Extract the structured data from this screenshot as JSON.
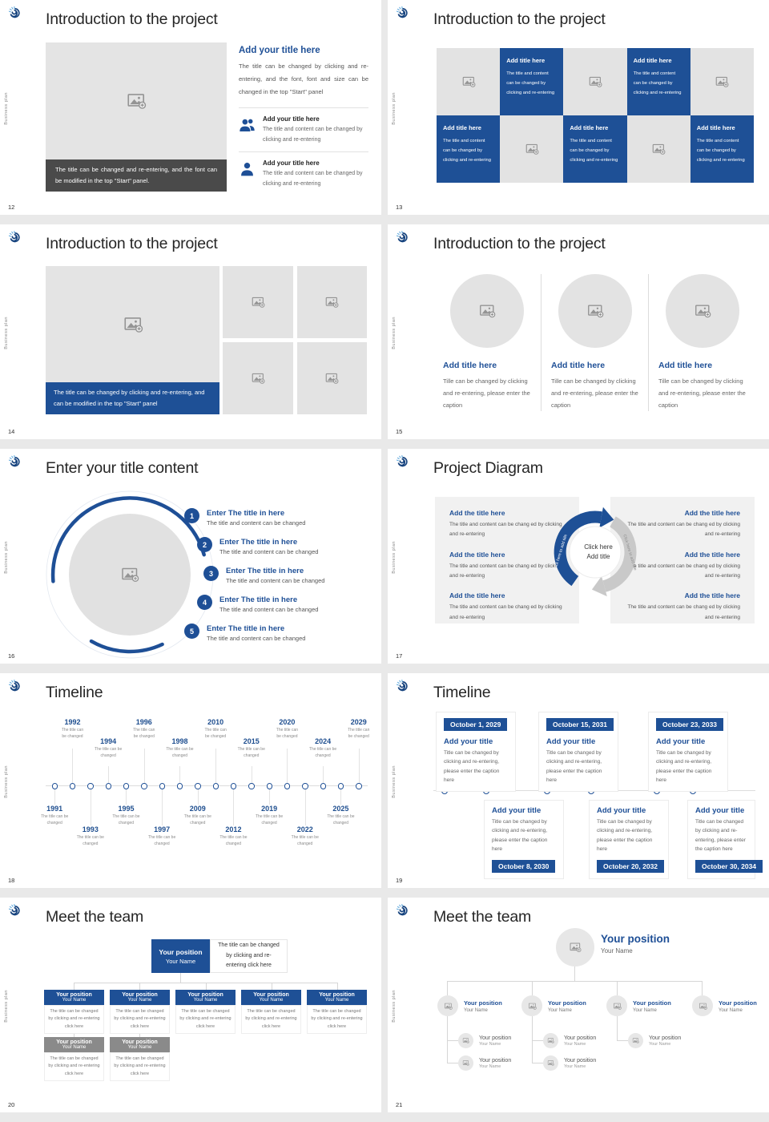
{
  "page": {
    "background": "#e9e9e9",
    "accent": "#1e4f96",
    "sidebar_text": "Business plan"
  },
  "slides": {
    "s12": {
      "number": "12",
      "title": "Introduction to the project",
      "image_caption": "The title can be changed and re-entering, and the font can be modified in the top \"Start\" panel.",
      "heading": "Add your title here",
      "body": "The title can be changed by clicking and re-entering, and the font, font and size can be changed in the top \"Start\" panel",
      "items": [
        {
          "icon": "people",
          "title": "Add your title here",
          "text": "The title and content can be changed by clicking and re-entering"
        },
        {
          "icon": "person",
          "title": "Add your title here",
          "text": "The title and content can be changed by clicking and re-entering"
        }
      ]
    },
    "s13": {
      "number": "13",
      "title": "Introduction to the project",
      "cells": [
        {
          "type": "image"
        },
        {
          "type": "text",
          "title": "Add title here",
          "text": "The title and content can be changed by clicking and re-entering"
        },
        {
          "type": "image"
        },
        {
          "type": "text",
          "title": "Add title here",
          "text": "The title and content can be changed by clicking and re-entering"
        },
        {
          "type": "image"
        },
        {
          "type": "text",
          "title": "Add title here",
          "text": "The title and content can be changed by clicking and re-entering"
        },
        {
          "type": "image"
        },
        {
          "type": "text",
          "title": "Add title here",
          "text": "The title and content can be changed by clicking and re-entering"
        },
        {
          "type": "image"
        },
        {
          "type": "text",
          "title": "Add title here",
          "text": "The title and content can be changed by clicking and re-entering"
        }
      ]
    },
    "s14": {
      "number": "14",
      "title": "Introduction to the project",
      "caption": "The title can be changed by clicking and re-entering, and can be modified in the top \"Start\" panel",
      "thumbs": [
        "",
        "",
        "",
        ""
      ]
    },
    "s15": {
      "number": "15",
      "title": "Introduction to the project",
      "cols": [
        {
          "title": "Add title here",
          "text": "Tille can be changed by clicking and re-entering, please enter the caption"
        },
        {
          "title": "Add title here",
          "text": "Tille can be changed by clicking and re-entering, please enter the caption"
        },
        {
          "title": "Add title here",
          "text": "Tille can be changed by clicking and re-entering, please enter the caption"
        }
      ]
    },
    "s16": {
      "number": "16",
      "title": "Enter your title content",
      "items": [
        {
          "num": "1",
          "pos": "a",
          "title": "Enter The title in here",
          "text": "The title and content can be changed"
        },
        {
          "num": "2",
          "pos": "b",
          "title": "Enter The title in here",
          "text": "The title and content can be changed"
        },
        {
          "num": "3",
          "pos": "c",
          "title": "Enter The title in here",
          "text": "The title and content can be changed"
        },
        {
          "num": "4",
          "pos": "b",
          "title": "Enter The title in here",
          "text": "The title and content can be changed"
        },
        {
          "num": "5",
          "pos": "a",
          "title": "Enter The title in here",
          "text": "The title and content can be changed"
        }
      ]
    },
    "s17": {
      "number": "17",
      "title": "Project Diagram",
      "left_items": [
        {
          "title": "Add the title here",
          "text": "The title and content can be chang ed by clicking and re-entering"
        },
        {
          "title": "Add the title here",
          "text": "The title and content can be chang ed by clicking and re-entering"
        },
        {
          "title": "Add the title here",
          "text": "The title and content can be chang ed by clicking and re-entering"
        }
      ],
      "right_items": [
        {
          "title": "Add the title here",
          "text": "The title and content can be chang ed by clicking and re-entering"
        },
        {
          "title": "Add the title here",
          "text": "The title and content can be chang ed by clicking and re-entering"
        },
        {
          "title": "Add the title here",
          "text": "The title and content can be chang ed by clicking and re-entering"
        }
      ],
      "center": {
        "line1": "Click here",
        "line2": "Add title",
        "arrow_label": "Click here to add title"
      }
    },
    "s18": {
      "number": "18",
      "title": "Timeline",
      "points": [
        {
          "year": "1991",
          "pos": "below-near",
          "text": "The title can be changed"
        },
        {
          "year": "1992",
          "pos": "above-high",
          "text": "The title can be changed"
        },
        {
          "year": "1993",
          "pos": "below-far",
          "text": "The title can be changed"
        },
        {
          "year": "1994",
          "pos": "above-low",
          "text": "The title can be changed"
        },
        {
          "year": "1995",
          "pos": "below-near",
          "text": "The title can be changed"
        },
        {
          "year": "1996",
          "pos": "above-high",
          "text": "The title can be changed"
        },
        {
          "year": "1997",
          "pos": "below-far",
          "text": "The title can be changed"
        },
        {
          "year": "1998",
          "pos": "above-low",
          "text": "The title can be changed"
        },
        {
          "year": "2009",
          "pos": "below-near",
          "text": "The title can be changed"
        },
        {
          "year": "2010",
          "pos": "above-high",
          "text": "The title can be changed"
        },
        {
          "year": "2012",
          "pos": "below-far",
          "text": "The title can be changed"
        },
        {
          "year": "2015",
          "pos": "above-low",
          "text": "The title can be changed"
        },
        {
          "year": "2019",
          "pos": "below-near",
          "text": "The title can be changed"
        },
        {
          "year": "2020",
          "pos": "above-high",
          "text": "The title can be changed"
        },
        {
          "year": "2022",
          "pos": "below-far",
          "text": "The title can be changed"
        },
        {
          "year": "2024",
          "pos": "above-low",
          "text": "The title can be changed"
        },
        {
          "year": "2025",
          "pos": "below-near",
          "text": "The title can be changed"
        },
        {
          "year": "2029",
          "pos": "above-high",
          "text": "The title can be changed"
        }
      ]
    },
    "s19": {
      "number": "19",
      "title": "Timeline",
      "cards": [
        {
          "date": "October 1, 2029",
          "side": "top",
          "title": "Add your title",
          "text": "Title can be changed by clicking and re-entering, please enter the caption here"
        },
        {
          "date": "October 8, 2030",
          "side": "bottom",
          "title": "Add your title",
          "text": "Title can be changed by clicking and re-entering, please enter the caption here"
        },
        {
          "date": "October 15, 2031",
          "side": "top",
          "title": "Add your title",
          "text": "Title can be changed by clicking and re-entering, please enter the caption here"
        },
        {
          "date": "October 20, 2032",
          "side": "bottom",
          "title": "Add your title",
          "text": "Title can be changed by clicking and re-entering, please enter the caption here"
        },
        {
          "date": "October 23, 2033",
          "side": "top",
          "title": "Add your title",
          "text": "Title can be changed by clicking and re-entering, please enter the caption here"
        },
        {
          "date": "October 30, 2034",
          "side": "bottom",
          "title": "Add your title",
          "text": "Title can be changed by clicking and re-entering, please enter the caption here"
        }
      ]
    },
    "s20": {
      "number": "20",
      "title": "Meet the team",
      "root": {
        "position": "Your position",
        "name": "Your Name"
      },
      "root_note": "The title can be changed by clicking and re-entering click here",
      "row2": [
        {
          "position": "Your position",
          "name": "Your Name",
          "text": "The title can be changed by clicking and re-entering click here"
        },
        {
          "position": "Your position",
          "name": "Your Name",
          "text": "The title can be changed by clicking and re-entering click here"
        },
        {
          "position": "Your position",
          "name": "Your Name",
          "text": "The title can be changed by clicking and re-entering click here"
        },
        {
          "position": "Your position",
          "name": "Your Name",
          "text": "The title can be changed by clicking and re-entering click here"
        },
        {
          "position": "Your position",
          "name": "Your Name",
          "text": "The title can be changed by clicking and re-entering click here"
        }
      ],
      "row3": [
        {
          "position": "Your position",
          "name": "Your Name",
          "text": "The title can be changed by clicking and re-entering click here"
        },
        {
          "position": "Your position",
          "name": "Your Name",
          "text": "The title can be changed by clicking and re-entering click here"
        }
      ]
    },
    "s21": {
      "number": "21",
      "title": "Meet the team",
      "root": {
        "position": "Your position",
        "name": "Your Name"
      },
      "row2": [
        {
          "position": "Your position",
          "name": "Your Name"
        },
        {
          "position": "Your position",
          "name": "Your Name"
        },
        {
          "position": "Your position",
          "name": "Your Name"
        },
        {
          "position": "Your position",
          "name": "Your Name"
        }
      ],
      "row3": [
        {
          "position": "Your position",
          "name": "Your Name"
        },
        {
          "position": "Your position",
          "name": "Your Name"
        },
        {
          "position": "Your position",
          "name": "Your Name"
        }
      ],
      "row4": [
        {
          "position": "Your position",
          "name": "Your Name"
        },
        {
          "position": "Your position",
          "name": "Your Name"
        }
      ]
    }
  }
}
